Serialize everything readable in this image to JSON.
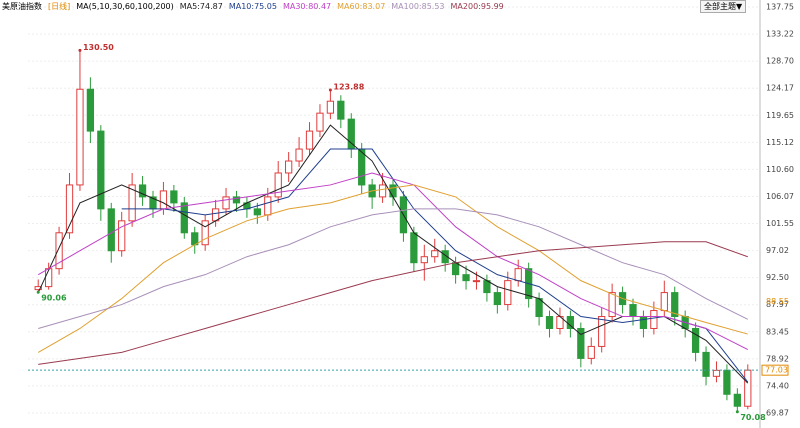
{
  "chart_data": {
    "type": "candlestick",
    "title": "美原油指数",
    "period": "[日线]",
    "ma_params": "MA(5,10,30,60,100,200)",
    "button": "全部主题▼",
    "up_color": "#e03c3c",
    "down_color": "#2a9a3a",
    "ylim": [
      69.87,
      137.75
    ],
    "yticks": [
      69.87,
      {
        "value": 74.4,
        "label": "74.40"
      },
      78.92,
      83.45,
      87.97,
      {
        "value": 92.5,
        "label": "92.50"
      },
      97.02,
      101.55,
      106.07,
      {
        "value": 110.6,
        "label": "110.60"
      },
      115.12,
      119.65,
      124.17,
      {
        "value": 128.7,
        "label": "128.70"
      },
      133.22,
      137.75
    ],
    "grid": true,
    "ohlc": [
      [
        90.5,
        92.2,
        90.06,
        91
      ],
      [
        91,
        95,
        90.5,
        94
      ],
      [
        94,
        101,
        93,
        100
      ],
      [
        100,
        110,
        99,
        108
      ],
      [
        108,
        130.5,
        107,
        124
      ],
      [
        124,
        126,
        115,
        117
      ],
      [
        117,
        118,
        102,
        104
      ],
      [
        104,
        105,
        95,
        97
      ],
      [
        97,
        103.5,
        96,
        102
      ],
      [
        102,
        110,
        101,
        108
      ],
      [
        108,
        109.5,
        104.5,
        106
      ],
      [
        106,
        107,
        102.5,
        104
      ],
      [
        104,
        108.5,
        103,
        107
      ],
      [
        107,
        108,
        103.5,
        105
      ],
      [
        105,
        106,
        99,
        100
      ],
      [
        100,
        101,
        96.5,
        98
      ],
      [
        98,
        103,
        97,
        102
      ],
      [
        102,
        105.5,
        101,
        104
      ],
      [
        104,
        107.5,
        103,
        106
      ],
      [
        106,
        107,
        103.5,
        105
      ],
      [
        105,
        106,
        102.5,
        104
      ],
      [
        104,
        105,
        101.5,
        103
      ],
      [
        103,
        107.5,
        102,
        106
      ],
      [
        106,
        112,
        105,
        110
      ],
      [
        110,
        113.5,
        108.5,
        112
      ],
      [
        112,
        116,
        111,
        114
      ],
      [
        114,
        118.5,
        113,
        117
      ],
      [
        117,
        121.5,
        116,
        120
      ],
      [
        120,
        123.88,
        119,
        122
      ],
      [
        122,
        123,
        117.5,
        119
      ],
      [
        119,
        120,
        112.5,
        114
      ],
      [
        114,
        115,
        106.5,
        108
      ],
      [
        108,
        109,
        104,
        106
      ],
      [
        106,
        110,
        105,
        108
      ],
      [
        108,
        109,
        104.5,
        106
      ],
      [
        106,
        107,
        98.5,
        100
      ],
      [
        100,
        101,
        93.5,
        95
      ],
      [
        95,
        98,
        92,
        96
      ],
      [
        96,
        99,
        95,
        97
      ],
      [
        97,
        98,
        93.5,
        95
      ],
      [
        95,
        96,
        91.5,
        93
      ],
      [
        93,
        94.5,
        90.5,
        92
      ],
      [
        92,
        93.5,
        90.5,
        92
      ],
      [
        92,
        93,
        88.5,
        90
      ],
      [
        90,
        91,
        86.5,
        88
      ],
      [
        88,
        93.5,
        87,
        92
      ],
      [
        92,
        95.5,
        91,
        94
      ],
      [
        94,
        95,
        87.5,
        89
      ],
      [
        89,
        90,
        84.5,
        86
      ],
      [
        86,
        87,
        82.5,
        84
      ],
      [
        84,
        87.5,
        83,
        86
      ],
      [
        86,
        87,
        82.5,
        84
      ],
      [
        84,
        85,
        77.5,
        79
      ],
      [
        79,
        82.5,
        78,
        81
      ],
      [
        81,
        87.5,
        80,
        86
      ],
      [
        86,
        91.5,
        85,
        90
      ],
      [
        90,
        91,
        86.5,
        88
      ],
      [
        88,
        89,
        84.5,
        86
      ],
      [
        86,
        87,
        82.5,
        84
      ],
      [
        84,
        88.5,
        83,
        87
      ],
      [
        87,
        92,
        86,
        90
      ],
      [
        90,
        91,
        84.5,
        86
      ],
      [
        86,
        87,
        82.5,
        84
      ],
      [
        84,
        85,
        78.5,
        80
      ],
      [
        80,
        81,
        74.5,
        76
      ],
      [
        76,
        78.5,
        75,
        77
      ],
      [
        77,
        78,
        72,
        73
      ],
      [
        73,
        74,
        70.08,
        71
      ],
      [
        71,
        78,
        70.5,
        77.03
      ]
    ],
    "ma_x": [
      0,
      4,
      8,
      12,
      16,
      20,
      24,
      28,
      32,
      36,
      40,
      44,
      48,
      52,
      56,
      60,
      64,
      68
    ],
    "series": [
      {
        "name": "MA5:74.87",
        "color": "#222222",
        "values": [
          90,
          105,
          108,
          105,
          101,
          105,
          108,
          118,
          112,
          100,
          95,
          91,
          89,
          83,
          86,
          86,
          82,
          74.87
        ]
      },
      {
        "name": "MA10:75.05",
        "color": "#1f3f8f",
        "values": [
          null,
          null,
          104,
          104,
          103,
          104,
          106,
          114,
          114,
          104,
          97,
          93,
          91,
          86,
          85,
          86,
          84,
          75.05
        ]
      },
      {
        "name": "MA30:80.47",
        "color": "#c040c8",
        "values": [
          93,
          97,
          101,
          104,
          105,
          106,
          107,
          108,
          110,
          108,
          101,
          96,
          93,
          89,
          86,
          86,
          84,
          80.47
        ]
      },
      {
        "name": "MA60:83.07",
        "color": "#e0a030",
        "values": [
          80,
          84,
          89,
          95,
          99,
          102,
          104,
          105,
          107,
          108,
          106,
          101,
          97,
          92,
          89,
          87,
          85,
          83.07
        ]
      },
      {
        "name": "MA100:85.53",
        "color": "#a890b8",
        "values": [
          84,
          86,
          88,
          91,
          93,
          96,
          98,
          101,
          103,
          104,
          104,
          103,
          101,
          98,
          95,
          93,
          89,
          85.53
        ]
      },
      {
        "name": "MA200:95.99",
        "color": "#9a3a50",
        "values": [
          78,
          79,
          80,
          82,
          84,
          86,
          88,
          90,
          92,
          93.5,
          95,
          96,
          97,
          97.5,
          98,
          98.5,
          98.5,
          95.99
        ]
      }
    ],
    "annotations": [
      {
        "label": "130.50",
        "index": 4,
        "value": 130.5,
        "color": "#c03030"
      },
      {
        "label": "123.88",
        "index": 28,
        "value": 123.88,
        "color": "#c03030"
      },
      {
        "label": "90.06",
        "index": 0,
        "value": 90.06,
        "color": "#2a9a3a"
      },
      {
        "label": "70.08",
        "index": 67,
        "value": 70.08,
        "color": "#2a9a3a"
      }
    ],
    "price_line": {
      "value": 77.03,
      "label": "77.03",
      "color": "#3aa0a0",
      "label_color": "#e08a00"
    },
    "side_labels": [
      {
        "value": 88.55,
        "label": "88.55",
        "color": "#e08a00"
      }
    ]
  }
}
